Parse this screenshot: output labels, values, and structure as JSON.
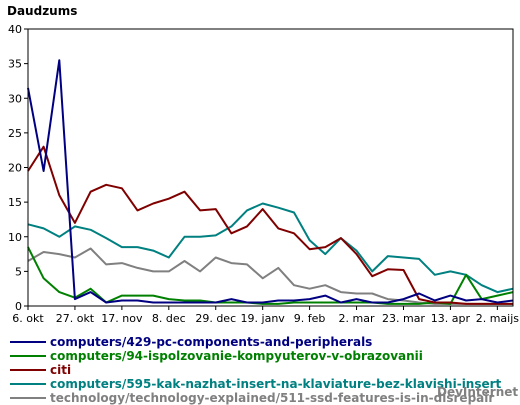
{
  "chart_data": {
    "type": "line",
    "title": "Daudzums",
    "xlabel": "",
    "ylabel": "",
    "ylim": [
      0,
      40
    ],
    "yticks": [
      0,
      5,
      10,
      15,
      20,
      25,
      30,
      35,
      40
    ],
    "grid": false,
    "legend_position": "bottom",
    "x_ticks": [
      {
        "label": "6. okt",
        "index": 0
      },
      {
        "label": "27. okt",
        "index": 3
      },
      {
        "label": "17. nov",
        "index": 6
      },
      {
        "label": "8. dec",
        "index": 9
      },
      {
        "label": "29. dec",
        "index": 12
      },
      {
        "label": "19. janv",
        "index": 15
      },
      {
        "label": "9. feb",
        "index": 18
      },
      {
        "label": "2. mar",
        "index": 21
      },
      {
        "label": "23. mar",
        "index": 24
      },
      {
        "label": "13. apr",
        "index": 27
      },
      {
        "label": "2. maijs",
        "index": 30
      }
    ],
    "series": [
      {
        "name": "computers/429-pc-components-and-peripherals",
        "color": "#000080",
        "values": [
          31.5,
          19.5,
          35.5,
          1,
          2,
          0.5,
          0.8,
          0.8,
          0.5,
          0.5,
          0.5,
          0.5,
          0.5,
          1,
          0.5,
          0.5,
          0.8,
          0.8,
          1,
          1.5,
          0.5,
          1,
          0.5,
          0.5,
          1,
          1.8,
          0.8,
          1.5,
          0.8,
          1,
          0.5,
          0.8
        ]
      },
      {
        "name": "computers/94-ispolzovanie-kompyuterov-v-obrazovanii",
        "color": "#008000",
        "values": [
          8.5,
          4,
          2,
          1.2,
          2.5,
          0.5,
          1.5,
          1.5,
          1.5,
          1,
          0.8,
          0.8,
          0.5,
          0.5,
          0.5,
          0.3,
          0.3,
          0.5,
          0.5,
          0.5,
          0.5,
          0.5,
          0.5,
          0.3,
          0.3,
          0.3,
          0.5,
          0.3,
          4.5,
          1,
          1.5,
          2
        ]
      },
      {
        "name": "citi",
        "color": "#800000",
        "values": [
          19.5,
          23,
          16,
          12,
          16.5,
          17.5,
          17,
          13.8,
          14.8,
          15.5,
          16.5,
          13.8,
          14,
          10.5,
          11.5,
          14,
          11.2,
          10.5,
          8.2,
          8.5,
          9.8,
          7.5,
          4.3,
          5.3,
          5.2,
          1,
          0.5,
          0.5,
          0.3,
          0.3,
          0.3,
          0.3
        ]
      },
      {
        "name": "computers/595-kak-nazhat-insert-na-klaviature-bez-klavishi-insert",
        "color": "#008080",
        "values": [
          11.8,
          11.2,
          10,
          11.5,
          11,
          9.8,
          8.5,
          8.5,
          8,
          7,
          10,
          10,
          10.2,
          11.5,
          13.8,
          14.8,
          14.2,
          13.5,
          9.5,
          7.5,
          9.8,
          8,
          5,
          7.2,
          7,
          6.8,
          4.5,
          5,
          4.5,
          3,
          2,
          2.5
        ]
      },
      {
        "name": "technology/technology-explained/511-ssd-features-is-in-disrepair",
        "color": "#808080",
        "values": [
          6.5,
          7.8,
          7.5,
          7,
          8.3,
          6,
          6.2,
          5.5,
          5,
          5,
          6.5,
          5,
          7,
          6.2,
          6,
          4,
          5.5,
          3,
          2.5,
          3,
          2,
          1.8,
          1.8,
          1,
          0.8,
          0.5,
          0.3,
          0.3,
          0.3,
          0.3,
          0.3,
          0.3
        ]
      }
    ]
  },
  "branding": {
    "text": "DevInternet"
  }
}
